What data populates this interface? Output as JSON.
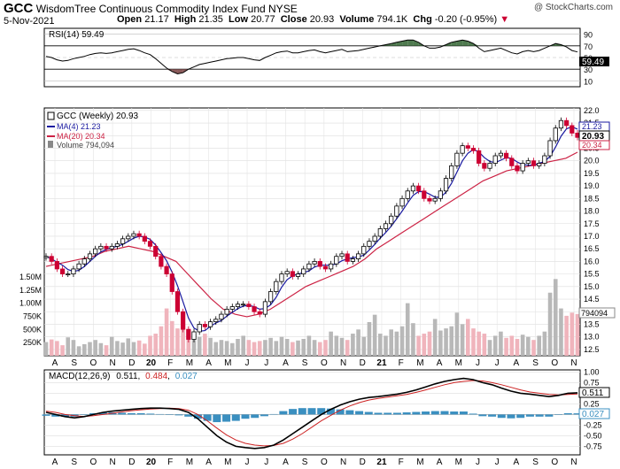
{
  "header": {
    "symbol": "GCC",
    "name": "WisdomTree Continuous Commodity Index Fund NYSE",
    "date": "5-Nov-2021",
    "open_label": "Open",
    "open": "21.17",
    "high_label": "High",
    "high": "21.35",
    "low_label": "Low",
    "low": "20.77",
    "close_label": "Close",
    "close": "20.93",
    "volume_label": "Volume",
    "volume": "794.1K",
    "chg_label": "Chg",
    "chg": "-0.20 (-0.95%)",
    "chg_arrow": "▼",
    "watermark": "@ StockCharts.com"
  },
  "colors": {
    "up": "#000000",
    "down": "#cc0033",
    "ma4": "#1a1aa0",
    "ma20": "#cc2244",
    "vol_up": "#b8b8b8",
    "vol_down": "#f0b4bc",
    "rsi_fill": "#4f7a4f",
    "rsi_low_fill": "#8a5a5a",
    "hist": "#3a8fc0",
    "macd_signal": "#cc2222"
  },
  "x_labels": [
    "A",
    "S",
    "O",
    "N",
    "D",
    "20",
    "F",
    "M",
    "A",
    "M",
    "J",
    "J",
    "A",
    "S",
    "O",
    "N",
    "D",
    "21",
    "F",
    "M",
    "A",
    "M",
    "J",
    "J",
    "A",
    "S",
    "O",
    "N"
  ],
  "rsi_panel": {
    "legend": "RSI(14) 59.49",
    "ticks": [
      "90",
      "70",
      "50",
      "30",
      "10"
    ],
    "current": "59.49"
  },
  "price_panel": {
    "legend_price": "GCC (Weekly) 20.93",
    "legend_ma4": "MA(4) 21.23",
    "legend_ma20": "MA(20) 20.34",
    "legend_vol": "Volume 794,094",
    "ticks": [
      "22.0",
      "21.5",
      "21.0",
      "20.5",
      "20.0",
      "19.5",
      "19.0",
      "18.5",
      "18.0",
      "17.5",
      "17.0",
      "16.5",
      "16.0",
      "15.5",
      "15.0",
      "14.5",
      "14.0",
      "13.5",
      "13.0",
      "12.5"
    ],
    "tag_ma4": "21.23",
    "tag_price": "20.93",
    "tag_ma20": "20.34",
    "tag_vol": "794094",
    "vol_ticks": [
      "1.50M",
      "1.25M",
      "1.00M",
      "750K",
      "500K",
      "250K"
    ]
  },
  "macd_panel": {
    "legend_prefix": "MACD(12,26,9)",
    "macd": "0.511",
    "signal": "0.484",
    "hist": "0.027",
    "ticks": [
      "1.00",
      "0.75",
      "0.50",
      "0.25",
      "0.00",
      "-0.25",
      "-0.50",
      "-0.75"
    ],
    "tag_macd": "0.511",
    "tag_hist": "0.027"
  },
  "chart_data": {
    "type": "candlestick",
    "title": "GCC WisdomTree Continuous Commodity Index Fund NYSE",
    "interval": "Weekly",
    "x_range": [
      "2019-08",
      "2021-11"
    ],
    "price": {
      "ylim": [
        12.25,
        22.1
      ],
      "close_path": [
        16.2,
        16.0,
        15.7,
        15.5,
        15.5,
        15.7,
        15.9,
        16.1,
        16.3,
        16.5,
        16.6,
        16.5,
        16.6,
        16.7,
        16.9,
        17.0,
        17.1,
        17.0,
        16.8,
        16.6,
        16.2,
        15.8,
        15.5,
        14.8,
        14.0,
        13.3,
        12.9,
        13.2,
        13.5,
        13.4,
        13.6,
        13.7,
        13.9,
        14.1,
        14.2,
        14.3,
        14.3,
        14.2,
        14.0,
        13.9,
        14.4,
        14.8,
        15.2,
        15.5,
        15.6,
        15.4,
        15.5,
        15.7,
        15.9,
        16.0,
        15.8,
        15.7,
        15.9,
        16.2,
        16.3,
        16.0,
        16.1,
        16.3,
        16.6,
        16.8,
        17.0,
        17.3,
        17.5,
        17.8,
        18.2,
        18.5,
        18.8,
        19.0,
        18.8,
        18.5,
        18.4,
        18.5,
        18.8,
        19.3,
        19.8,
        20.3,
        20.6,
        20.5,
        20.4,
        19.9,
        19.7,
        19.9,
        20.2,
        20.3,
        20.1,
        19.8,
        19.6,
        19.9,
        20.0,
        19.8,
        19.9,
        20.2,
        20.8,
        21.3,
        21.6,
        21.4,
        21.1,
        20.93
      ],
      "ma4_last": 21.23,
      "ma20_last": 20.34,
      "ma20_path": [
        15.8,
        15.9,
        16.0,
        16.1,
        16.2,
        16.4,
        16.5,
        16.6,
        16.5,
        16.4,
        16.2,
        16.0,
        15.5,
        15.0,
        14.5,
        14.1,
        13.9,
        13.8,
        13.9,
        14.1,
        14.4,
        14.7,
        15.0,
        15.2,
        15.4,
        15.6,
        15.8,
        16.1,
        16.5,
        16.8,
        17.1,
        17.4,
        17.7,
        18.0,
        18.3,
        18.6,
        18.9,
        19.2,
        19.4,
        19.6,
        19.7,
        19.8,
        19.9,
        20.0,
        20.1,
        20.34
      ]
    },
    "volume": {
      "ylim": [
        0,
        1600000
      ],
      "last": 794094,
      "values": [
        260,
        310,
        280,
        200,
        350,
        300,
        180,
        220,
        260,
        300,
        240,
        200,
        360,
        280,
        250,
        330,
        260,
        290,
        230,
        380,
        420,
        560,
        900,
        660,
        520,
        500,
        380,
        300,
        360,
        420,
        340,
        260,
        300,
        280,
        240,
        320,
        380,
        300,
        260,
        280,
        300,
        340,
        280,
        360,
        320,
        260,
        290,
        320,
        380,
        300,
        260,
        300,
        460,
        380,
        340,
        300,
        420,
        500,
        360,
        640,
        780,
        420,
        380,
        500,
        460,
        560,
        1000,
        620,
        380,
        420,
        460,
        700,
        480,
        520,
        560,
        820,
        600,
        700,
        520,
        460,
        420,
        300,
        380,
        460,
        340,
        380,
        320,
        400,
        360,
        300,
        380,
        460,
        1200,
        1460,
        900,
        760,
        820,
        794
      ]
    },
    "rsi": {
      "ylim": [
        0,
        100
      ],
      "last": 59.49,
      "values": [
        52,
        50,
        46,
        44,
        45,
        48,
        50,
        52,
        55,
        57,
        58,
        57,
        58,
        60,
        62,
        64,
        65,
        62,
        58,
        55,
        48,
        40,
        32,
        26,
        22,
        24,
        30,
        34,
        38,
        40,
        42,
        44,
        46,
        48,
        49,
        50,
        50,
        48,
        46,
        45,
        50,
        54,
        58,
        60,
        61,
        58,
        58,
        60,
        62,
        63,
        60,
        58,
        60,
        62,
        64,
        60,
        61,
        62,
        64,
        66,
        68,
        70,
        72,
        74,
        76,
        78,
        80,
        80,
        76,
        70,
        66,
        66,
        68,
        72,
        76,
        78,
        80,
        78,
        74,
        66,
        60,
        62,
        64,
        66,
        62,
        58,
        56,
        60,
        62,
        60,
        62,
        66,
        70,
        74,
        72,
        68,
        62,
        59.49
      ]
    },
    "macd": {
      "ylim": [
        -0.95,
        1.05
      ],
      "macd_last": 0.511,
      "signal_last": 0.484,
      "hist_last": 0.027,
      "macd_path": [
        0.05,
        0.0,
        -0.05,
        -0.08,
        -0.05,
        0.0,
        0.05,
        0.08,
        0.1,
        0.12,
        0.14,
        0.15,
        0.15,
        0.14,
        0.12,
        0.05,
        -0.1,
        -0.3,
        -0.5,
        -0.65,
        -0.75,
        -0.78,
        -0.8,
        -0.78,
        -0.72,
        -0.6,
        -0.45,
        -0.3,
        -0.15,
        0.0,
        0.12,
        0.22,
        0.3,
        0.36,
        0.4,
        0.42,
        0.45,
        0.48,
        0.52,
        0.58,
        0.65,
        0.72,
        0.78,
        0.82,
        0.85,
        0.82,
        0.75,
        0.7,
        0.62,
        0.55,
        0.5,
        0.48,
        0.45,
        0.42,
        0.45,
        0.5,
        0.511
      ],
      "signal_path": [
        0.08,
        0.05,
        0.0,
        -0.03,
        -0.05,
        -0.03,
        0.0,
        0.03,
        0.06,
        0.09,
        0.11,
        0.13,
        0.14,
        0.15,
        0.14,
        0.1,
        0.0,
        -0.15,
        -0.32,
        -0.48,
        -0.6,
        -0.68,
        -0.72,
        -0.74,
        -0.73,
        -0.68,
        -0.58,
        -0.45,
        -0.3,
        -0.15,
        -0.02,
        0.1,
        0.2,
        0.28,
        0.34,
        0.38,
        0.41,
        0.44,
        0.47,
        0.52,
        0.58,
        0.64,
        0.7,
        0.75,
        0.78,
        0.8,
        0.79,
        0.75,
        0.7,
        0.64,
        0.58,
        0.53,
        0.5,
        0.47,
        0.46,
        0.47,
        0.484
      ]
    }
  }
}
